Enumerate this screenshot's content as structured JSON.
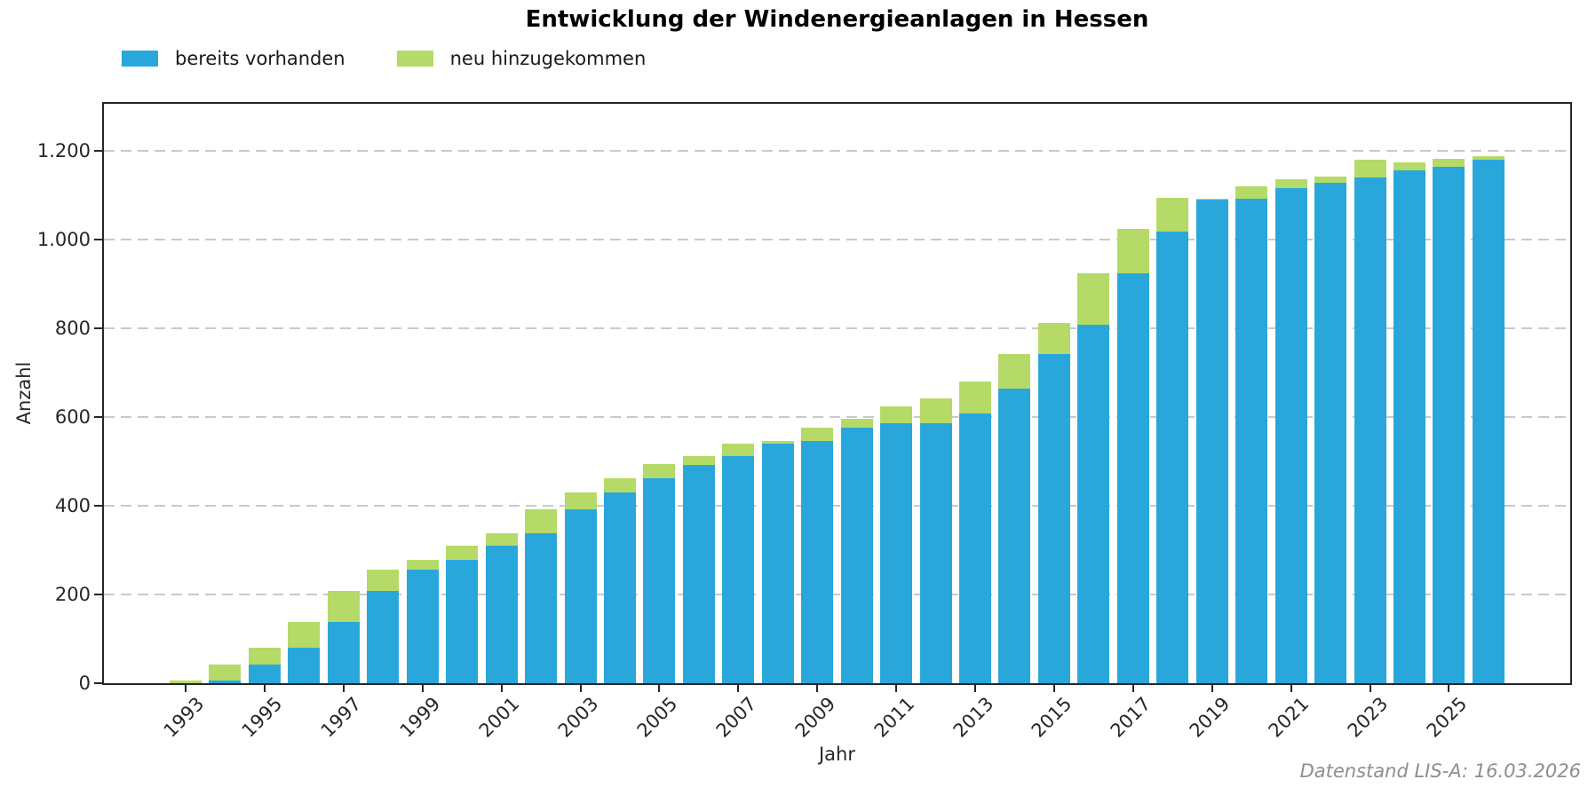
{
  "title": "Entwicklung der Windenergieanlagen in Hessen",
  "legend": [
    {
      "label": "bereits vorhanden",
      "color": "#29a7db"
    },
    {
      "label": "neu hinzugekommen",
      "color": "#b5da67"
    }
  ],
  "footer": "Datenstand LIS-A: 16.03.2026",
  "axes": {
    "xlabel": "Jahr",
    "ylabel": "Anzahl"
  },
  "chart_data": {
    "type": "bar",
    "stacked": true,
    "title": "Entwicklung der Windenergieanlagen in Hessen",
    "xlabel": "Jahr",
    "ylabel": "Anzahl",
    "grid": "horizontal-dashed",
    "legend_position": "top-left",
    "ylim": [
      0,
      1306
    ],
    "yticks": [
      0,
      200,
      400,
      600,
      800,
      1000,
      1200
    ],
    "ytick_labels": [
      "0",
      "200",
      "400",
      "600",
      "800",
      "1.000",
      "1.200"
    ],
    "xtick_labels": [
      "1993",
      "1995",
      "1997",
      "1999",
      "2001",
      "2003",
      "2005",
      "2007",
      "2009",
      "2011",
      "2013",
      "2015",
      "2017",
      "2019",
      "2021",
      "2023",
      "2025"
    ],
    "categories": [
      1993,
      1994,
      1995,
      1996,
      1997,
      1998,
      1999,
      2000,
      2001,
      2002,
      2003,
      2004,
      2005,
      2006,
      2007,
      2008,
      2009,
      2010,
      2011,
      2012,
      2013,
      2014,
      2015,
      2016,
      2017,
      2018,
      2019,
      2020,
      2021,
      2022,
      2023,
      2024,
      2025,
      2026
    ],
    "series": [
      {
        "name": "bereits vorhanden",
        "color": "#29a7db",
        "values": [
          0,
          7,
          42,
          80,
          139,
          208,
          257,
          278,
          311,
          339,
          393,
          430,
          463,
          493,
          512,
          540,
          546,
          577,
          586,
          587,
          608,
          665,
          743,
          809,
          925,
          1018,
          1090,
          1092,
          1117,
          1129,
          1140,
          1157,
          1165,
          1181
        ]
      },
      {
        "name": "neu hinzugekommen",
        "color": "#b5da67",
        "values": [
          7,
          35,
          38,
          59,
          69,
          49,
          21,
          33,
          28,
          54,
          37,
          33,
          32,
          19,
          28,
          7,
          31,
          20,
          39,
          55,
          72,
          78,
          70,
          116,
          100,
          77,
          3,
          29,
          20,
          14,
          41,
          18,
          18,
          8
        ]
      }
    ]
  }
}
